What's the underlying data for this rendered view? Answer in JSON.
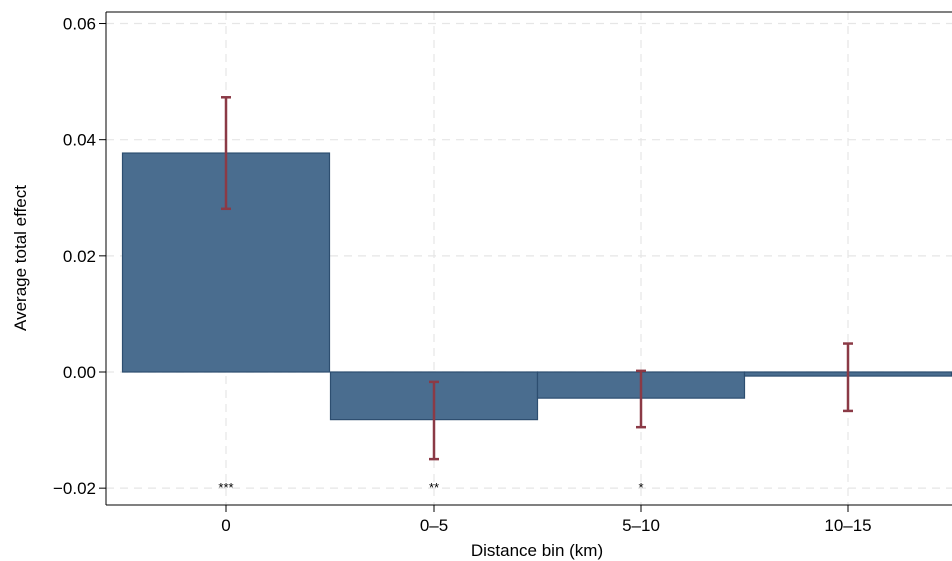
{
  "chart_data": {
    "type": "bar",
    "xlabel": "Distance bin (km)",
    "ylabel": "Average total effect",
    "categories": [
      "0",
      "0–5",
      "5–10",
      "10–15"
    ],
    "values": [
      0.0377,
      -0.0082,
      -0.0045,
      -0.0007
    ],
    "ci_low": [
      0.0281,
      -0.015,
      -0.0095,
      -0.0067
    ],
    "ci_high": [
      0.0473,
      -0.0017,
      0.0002,
      0.0049
    ],
    "significance": [
      "***",
      "**",
      "*",
      ""
    ],
    "ylim": [
      -0.0225,
      0.0625
    ],
    "yticks": [
      -0.02,
      0.0,
      0.02,
      0.04,
      0.06
    ],
    "ytick_labels": [
      "−0.02",
      "0.00",
      "0.02",
      "0.04",
      "0.06"
    ],
    "grid": true,
    "colors": {
      "bar": "#4a6d8f",
      "bar_edge": "#2d4e70",
      "error_bar": "#8b3a46",
      "grid": "#e6e6e6"
    }
  }
}
